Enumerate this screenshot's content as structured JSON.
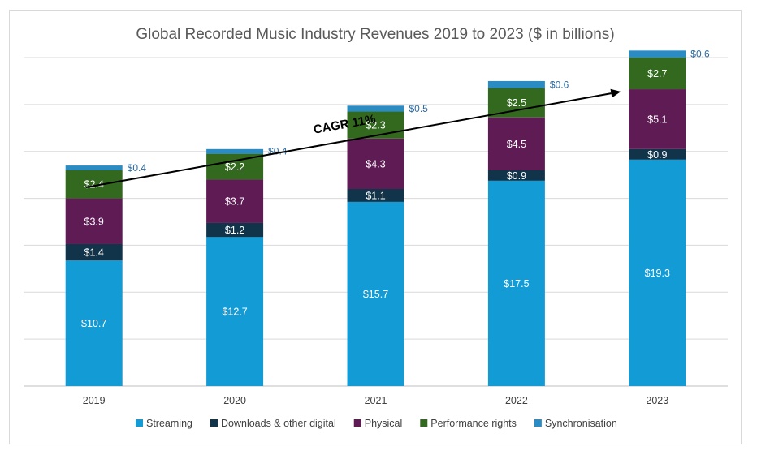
{
  "chart_data": {
    "type": "bar",
    "stacked": true,
    "title": "Global Recorded Music Industry Revenues 2019 to 2023 ($ in billions)",
    "xlabel": "",
    "ylabel": "",
    "categories": [
      "2019",
      "2020",
      "2021",
      "2022",
      "2023"
    ],
    "ylim": [
      0,
      28
    ],
    "grid": true,
    "legend_position": "bottom",
    "value_prefix": "$",
    "series": [
      {
        "name": "Streaming",
        "color": "#139bd5",
        "values": [
          10.7,
          12.7,
          15.7,
          17.5,
          19.3
        ]
      },
      {
        "name": "Downloads & other digital",
        "color": "#12344a",
        "values": [
          1.4,
          1.2,
          1.1,
          0.9,
          0.9
        ]
      },
      {
        "name": "Physical",
        "color": "#5e1b54",
        "values": [
          3.9,
          3.7,
          4.3,
          4.5,
          5.1
        ]
      },
      {
        "name": "Performance rights",
        "color": "#33691e",
        "values": [
          2.4,
          2.2,
          2.3,
          2.5,
          2.7
        ]
      },
      {
        "name": "Synchronisation",
        "color": "#2b8cc4",
        "values": [
          0.4,
          0.4,
          0.5,
          0.6,
          0.6
        ]
      }
    ],
    "annotations": [
      {
        "text": "CAGR 11%",
        "type": "arrow",
        "from_category": "2019",
        "to_category": "2023"
      }
    ]
  }
}
